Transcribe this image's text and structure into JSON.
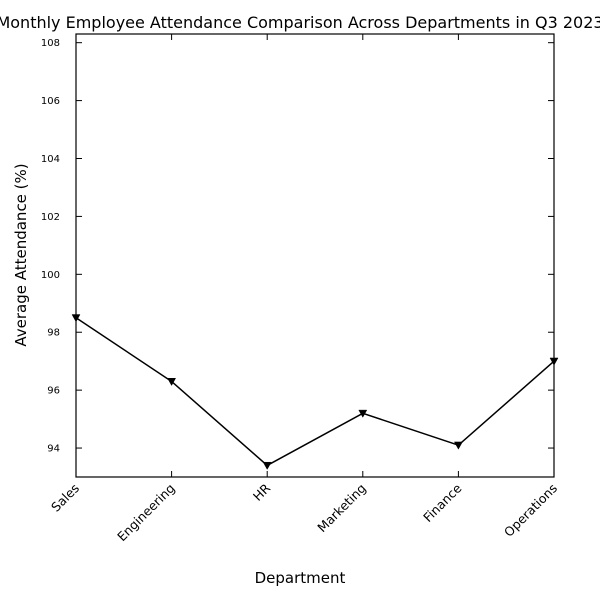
{
  "chart_data": {
    "type": "line",
    "title": "Monthly Employee Attendance Comparison Across Departments in Q3 2023",
    "xlabel": "Department",
    "ylabel": "Average Attendance (%)",
    "categories": [
      "Sales",
      "Engineering",
      "HR",
      "Marketing",
      "Finance",
      "Operations"
    ],
    "series": [
      {
        "values": [
          98.5,
          96.3,
          93.4,
          95.2,
          94.1,
          97.0
        ],
        "color": "#000000",
        "marker": "triangle-down"
      }
    ],
    "ylim": [
      93.0,
      108.3
    ],
    "yticks": [
      94,
      96,
      98,
      100,
      102,
      104,
      106,
      108
    ],
    "grid": false,
    "legend": "none"
  }
}
